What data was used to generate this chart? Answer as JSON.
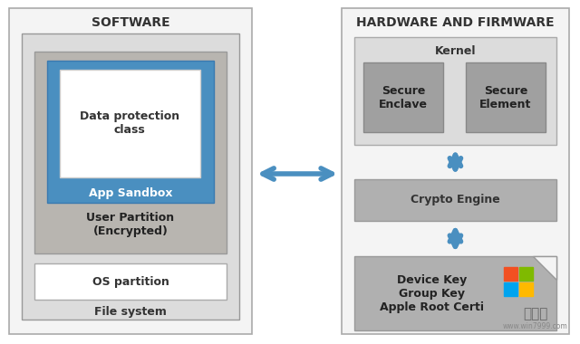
{
  "bg_color": "#ffffff",
  "software_title": "SOFTWARE",
  "hardware_title": "HARDWARE AND FIRMWARE",
  "file_system_label": "File system",
  "user_partition_label": "User Partition\n(Encrypted)",
  "os_partition_label": "OS partition",
  "data_protection_label": "Data protection\nclass",
  "app_sandbox_label": "App Sandbox",
  "kernel_label": "Kernel",
  "secure_enclave_label": "Secure\nEnclave",
  "secure_element_label": "Secure\nElement",
  "crypto_engine_label": "Crypto Engine",
  "keys_label": "Device Key\nGroup Key\nApple Root Certi",
  "arrow_color": "#4a8fc0",
  "col_light_gray": "#dcdcdc",
  "col_mid_gray": "#b0b0b0",
  "col_dark_gray": "#a0a0a0",
  "col_blue": "#4a8fc0",
  "col_white": "#ffffff",
  "col_panel": "#f4f4f4",
  "col_user_part": "#b8b5b0",
  "watermark_text1": "系统粉",
  "watermark_text2": "www.win7999.com"
}
